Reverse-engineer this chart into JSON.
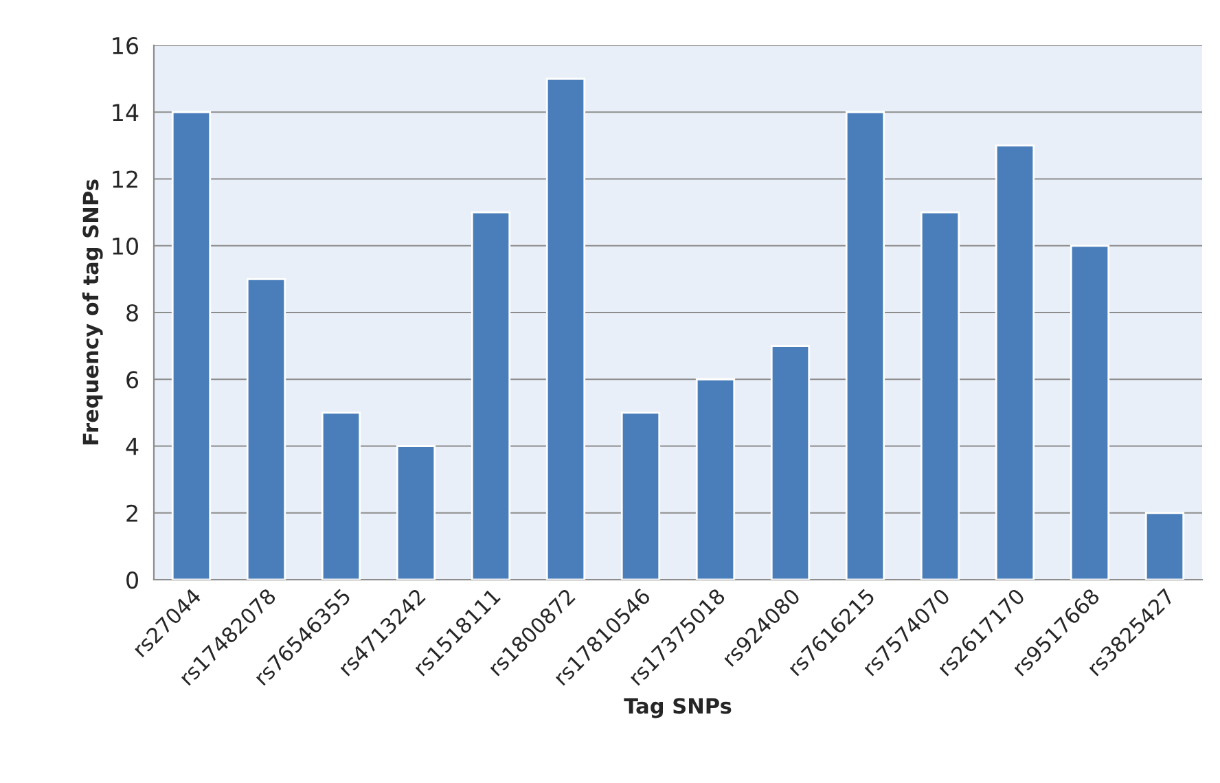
{
  "chart_data": {
    "type": "bar",
    "xlabel": "Tag SNPs",
    "ylabel": "Frequency of tag SNPs",
    "categories": [
      "rs27044",
      "rs17482078",
      "rs76546355",
      "rs4713242",
      "rs1518111",
      "rs1800872",
      "rs17810546",
      "rs17375018",
      "rs924080",
      "rs7616215",
      "rs7574070",
      "rs2617170",
      "rs9517668",
      "rs3825427"
    ],
    "values": [
      14,
      9,
      5,
      4,
      11,
      15,
      5,
      6,
      7,
      14,
      11,
      13,
      10,
      2
    ],
    "color": "#4a7ebb",
    "ylim": [
      0,
      16
    ],
    "yticks": [
      0,
      2,
      4,
      6,
      8,
      10,
      12,
      14,
      16
    ],
    "grid": "y",
    "legend": false
  }
}
